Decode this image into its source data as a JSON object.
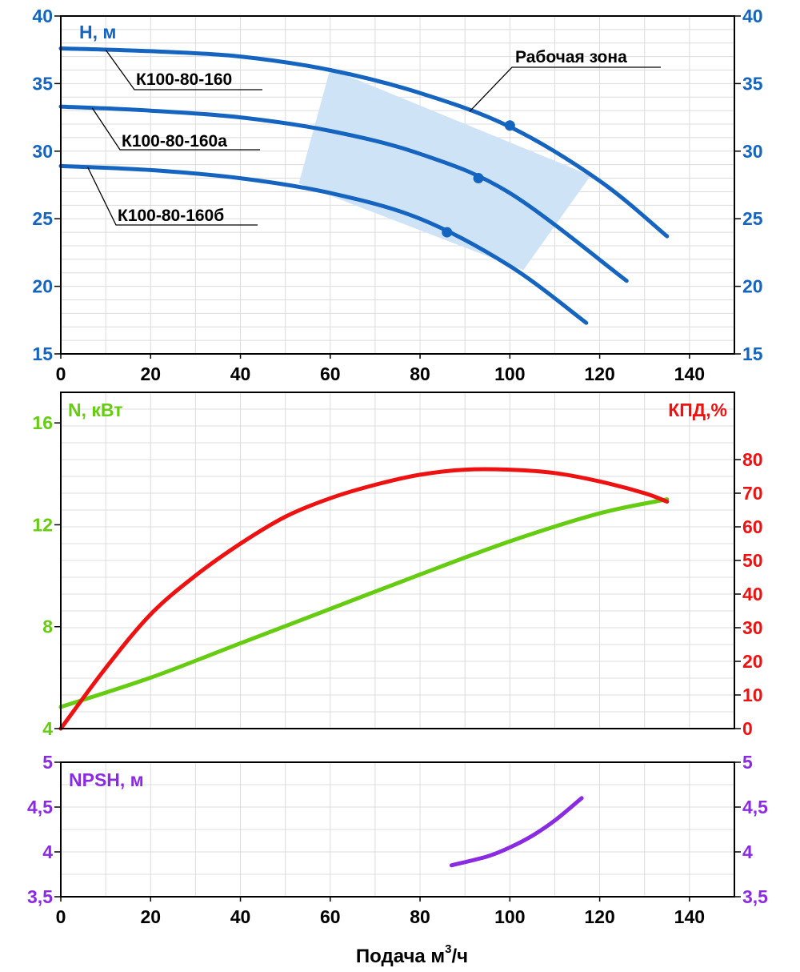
{
  "chart_data": [
    {
      "type": "line",
      "title": "",
      "ylabel": "H, м",
      "xlim": [
        0,
        150
      ],
      "ylim": [
        15,
        40
      ],
      "x_ticks": [
        0,
        20,
        40,
        60,
        80,
        100,
        120,
        140
      ],
      "y_ticks": [
        15,
        20,
        25,
        30,
        35,
        40
      ],
      "y_ticks_right": [
        15,
        20,
        25,
        30,
        35,
        40
      ],
      "grid": true,
      "colors": {
        "axis": "#1565c0",
        "curve": "#1565c0",
        "zone": "#cfe3f7"
      },
      "series": [
        {
          "name": "К100-80-160",
          "x": [
            0,
            20,
            40,
            60,
            80,
            100,
            120,
            135
          ],
          "y": [
            37.6,
            37.4,
            37.0,
            36.0,
            34.3,
            31.8,
            27.8,
            23.7
          ]
        },
        {
          "name": "К100-80-160а",
          "x": [
            0,
            20,
            40,
            60,
            80,
            100,
            126
          ],
          "y": [
            33.3,
            33.0,
            32.5,
            31.5,
            29.8,
            26.9,
            20.4
          ]
        },
        {
          "name": "К100-80-160б",
          "x": [
            0,
            20,
            40,
            60,
            80,
            100,
            117
          ],
          "y": [
            28.9,
            28.6,
            28.0,
            26.9,
            25.0,
            21.5,
            17.3
          ]
        }
      ],
      "operating_points": [
        {
          "x": 100,
          "y": 31.9
        },
        {
          "x": 93,
          "y": 28.0
        },
        {
          "x": 86,
          "y": 24.0
        }
      ],
      "zone": {
        "label": "Рабочая зона",
        "polygon": [
          [
            60,
            36.1
          ],
          [
            118,
            28.2
          ],
          [
            103,
            21.2
          ],
          [
            53,
            27.6
          ]
        ]
      }
    },
    {
      "type": "line",
      "title": "",
      "ylabel": "N, кВт",
      "ylabel_right": "КПД,%",
      "xlim": [
        0,
        150
      ],
      "ylim": [
        4,
        17.2
      ],
      "ylim_right": [
        0,
        100
      ],
      "y_ticks": [
        4,
        8,
        12,
        16
      ],
      "y_ticks_right": [
        0,
        10,
        20,
        30,
        40,
        50,
        60,
        70,
        80
      ],
      "grid": true,
      "colors": {
        "power": "#66cc11",
        "efficiency": "#ee1111"
      },
      "series": [
        {
          "name": "N",
          "axis": "left",
          "x": [
            0,
            20,
            40,
            60,
            80,
            100,
            120,
            135
          ],
          "y": [
            4.85,
            6.0,
            7.35,
            8.7,
            10.05,
            11.35,
            12.45,
            13.0
          ]
        },
        {
          "name": "КПД",
          "axis": "right",
          "x": [
            0,
            10,
            20,
            30,
            40,
            50,
            60,
            70,
            80,
            90,
            100,
            110,
            120,
            130,
            135
          ],
          "y": [
            0,
            18,
            34,
            45.5,
            55,
            63,
            68.5,
            72.5,
            75.5,
            77,
            77,
            76,
            73.5,
            70,
            67.5
          ]
        }
      ]
    },
    {
      "type": "line",
      "title": "",
      "ylabel": "NPSH, м",
      "xlabel": "Подача м",
      "xlabel_sup": "3",
      "xlabel_suffix": "/ч",
      "xlim": [
        0,
        150
      ],
      "ylim": [
        3.5,
        5
      ],
      "y_ticks": [
        "3,5",
        "4",
        "4,5",
        "5"
      ],
      "y_ticks_right": [
        "3,5",
        "4",
        "4,5",
        "5"
      ],
      "x_ticks": [
        0,
        20,
        40,
        60,
        80,
        100,
        120,
        140
      ],
      "grid": true,
      "colors": {
        "npsh": "#8a2be2"
      },
      "series": [
        {
          "name": "NPSH",
          "x": [
            87,
            95,
            100,
            105,
            110,
            116
          ],
          "y": [
            3.85,
            3.95,
            4.05,
            4.18,
            4.35,
            4.6
          ]
        }
      ]
    }
  ]
}
